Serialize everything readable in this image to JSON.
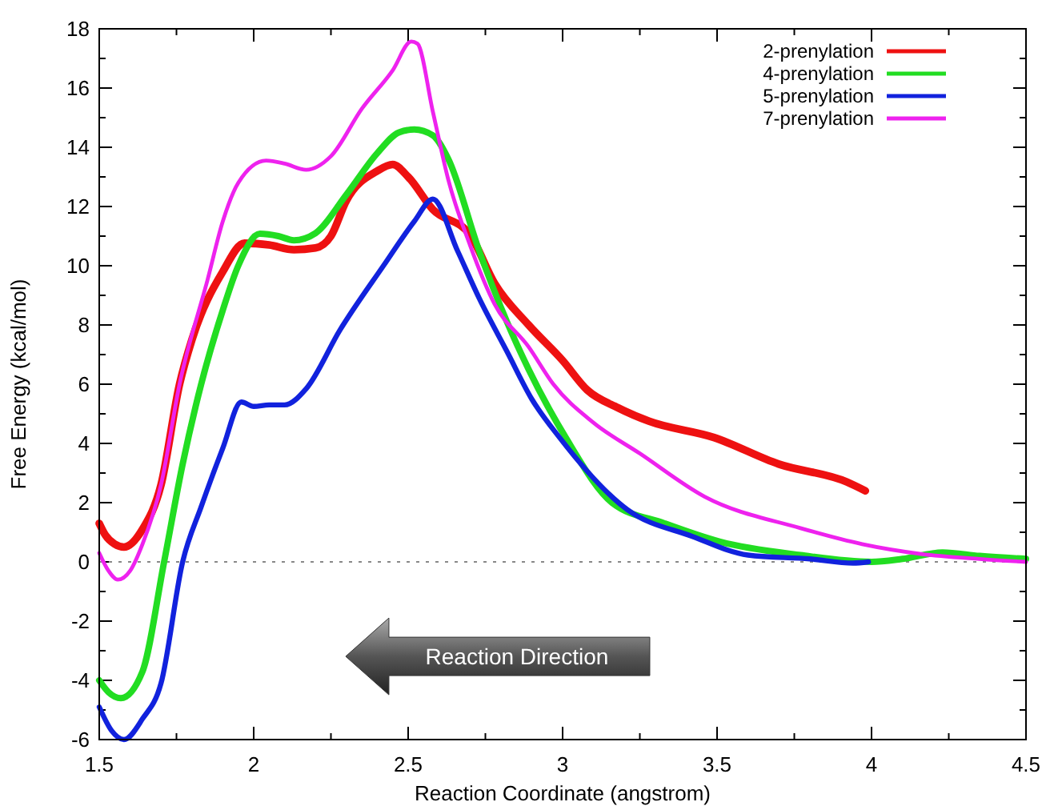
{
  "chart_data": {
    "type": "line",
    "xlabel": "Reaction Coordinate (angstrom)",
    "ylabel": "Free Energy (kcal/mol)",
    "xlim": [
      1.5,
      4.5
    ],
    "ylim": [
      -6,
      18
    ],
    "xticks": [
      1.5,
      {
        "value": 1.75,
        "label": null
      },
      2,
      {
        "value": 2.25,
        "label": null
      },
      2.5,
      {
        "value": 2.75,
        "label": null
      },
      3,
      {
        "value": 3.25,
        "label": null
      },
      3.5,
      {
        "value": 3.75,
        "label": null
      },
      4,
      {
        "value": 4.25,
        "label": null
      },
      4.5
    ],
    "yticks": [
      -6,
      {
        "value": -5,
        "label": null
      },
      -4,
      {
        "value": -3,
        "label": null
      },
      -2,
      {
        "value": -1,
        "label": null
      },
      0,
      {
        "value": 1,
        "label": null
      },
      2,
      {
        "value": 3,
        "label": null
      },
      4,
      {
        "value": 5,
        "label": null
      },
      6,
      {
        "value": 7,
        "label": null
      },
      8,
      {
        "value": 9,
        "label": null
      },
      10,
      {
        "value": 11,
        "label": null
      },
      12,
      {
        "value": 13,
        "label": null
      },
      14,
      {
        "value": 15,
        "label": null
      },
      16,
      {
        "value": 17,
        "label": null
      },
      18
    ],
    "grid": false,
    "legend": "top right",
    "marker": "none",
    "line_style": "solid",
    "ref_lines": [
      {
        "axis": "y",
        "value": 0,
        "color": "#888888",
        "line_style": "dotted"
      }
    ],
    "annotations": [
      "Reaction Direction"
    ],
    "series": [
      {
        "name": "2-prenylation",
        "color": "#ee1111",
        "x": [
          1.5,
          1.52,
          1.55,
          1.58,
          1.64,
          1.7,
          1.76,
          1.8,
          1.9,
          1.97,
          2.05,
          2.13,
          2.2,
          2.25,
          2.3,
          2.4,
          2.45,
          2.5,
          2.58,
          2.7,
          2.78,
          2.89,
          3.0,
          3.08,
          3.18,
          3.28,
          3.49,
          3.7,
          3.92,
          3.98
        ],
        "values": [
          1.3,
          0.9,
          0.6,
          0.5,
          1.1,
          2.6,
          6.0,
          7.5,
          9.8,
          10.76,
          10.7,
          10.54,
          10.6,
          11.0,
          12.2,
          13.2,
          13.42,
          13.0,
          11.9,
          11.05,
          9.4,
          8.0,
          6.8,
          5.8,
          5.2,
          4.75,
          4.2,
          3.3,
          2.7,
          2.4
        ]
      },
      {
        "name": "4-prenylation",
        "color": "#22dd22",
        "x": [
          1.5,
          1.53,
          1.57,
          1.64,
          1.71,
          1.77,
          1.83,
          1.9,
          1.95,
          2.02,
          2.08,
          2.13,
          2.2,
          2.3,
          2.4,
          2.47,
          2.52,
          2.58,
          2.63,
          2.73,
          2.82,
          2.89,
          3.01,
          3.16,
          3.33,
          3.51,
          3.77,
          4.0,
          4.1,
          4.23,
          4.35,
          4.5
        ],
        "values": [
          -4.0,
          -4.4,
          -4.6,
          -3.7,
          0,
          3.3,
          6.0,
          8.5,
          10.0,
          11.08,
          11.0,
          10.86,
          11.1,
          12.4,
          13.8,
          14.5,
          14.6,
          14.4,
          13.6,
          10.5,
          8.1,
          6.5,
          4.2,
          2.0,
          1.3,
          0.68,
          0.23,
          0,
          0.1,
          0.32,
          0.2,
          0.1
        ]
      },
      {
        "name": "5-prenylation",
        "color": "#1122dd",
        "x": [
          1.5,
          1.54,
          1.58,
          1.64,
          1.7,
          1.77,
          1.83,
          1.9,
          1.96,
          2.0,
          2.05,
          2.1,
          2.17,
          2.28,
          2.42,
          2.52,
          2.58,
          2.66,
          2.73,
          2.82,
          2.9,
          2.99,
          3.21,
          3.42,
          3.6,
          3.8,
          3.94,
          3.99
        ],
        "values": [
          -4.9,
          -5.7,
          -6.0,
          -5.3,
          -4.1,
          0,
          1.86,
          3.84,
          5.4,
          5.25,
          5.3,
          5.3,
          5.85,
          7.84,
          10.0,
          11.5,
          12.25,
          10.5,
          8.9,
          7.1,
          5.5,
          4.2,
          1.76,
          0.86,
          0.23,
          0.1,
          -0.04,
          0
        ]
      },
      {
        "name": "7-prenylation",
        "color": "#ee22ee",
        "x": [
          1.5,
          1.53,
          1.56,
          1.6,
          1.64,
          1.7,
          1.76,
          1.85,
          1.9,
          1.95,
          2.04,
          2.1,
          2.17,
          2.25,
          2.35,
          2.45,
          2.51,
          2.53,
          2.58,
          2.63,
          2.7,
          2.78,
          2.89,
          2.97,
          3.1,
          3.25,
          3.46,
          3.77,
          3.97,
          4.16,
          4.35,
          4.5
        ],
        "values": [
          0.3,
          -0.3,
          -0.6,
          -0.3,
          0.6,
          2.6,
          6.0,
          9.5,
          11.5,
          12.8,
          13.55,
          13.45,
          13.24,
          13.7,
          15.3,
          16.6,
          17.57,
          17.5,
          15.2,
          12.9,
          10.7,
          8.7,
          7.26,
          6.0,
          4.7,
          3.66,
          2.2,
          1.14,
          0.6,
          0.27,
          0.1,
          0
        ]
      }
    ]
  }
}
